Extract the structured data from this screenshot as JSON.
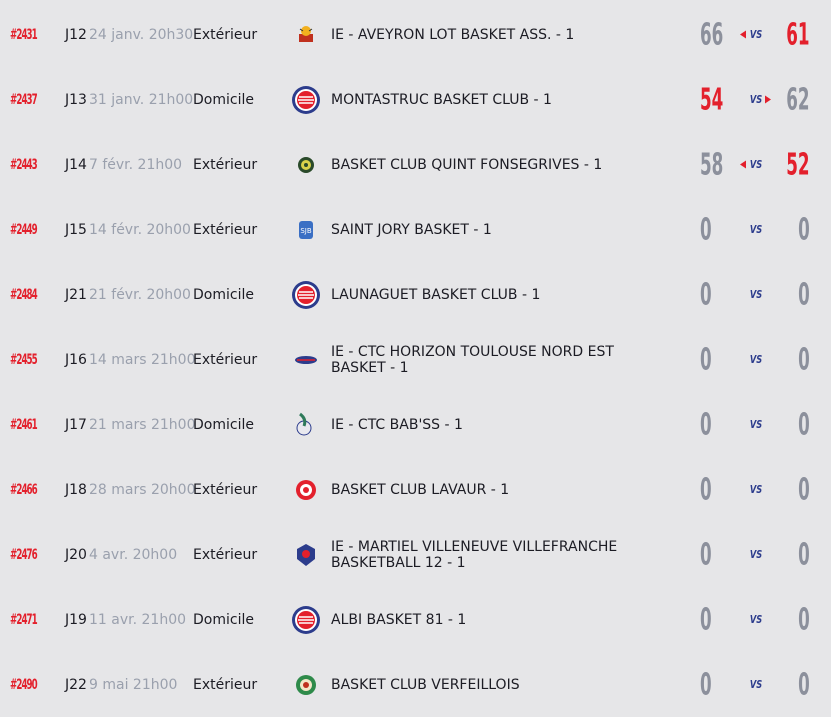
{
  "colors": {
    "accent": "#e3202c",
    "navy": "#2c3c8c",
    "muted": "#8c909c",
    "background": "#e6e6e8"
  },
  "vs_label": "VS",
  "matches": [
    {
      "code": "#2431",
      "jour": "J12",
      "date": "24 janv. 20h30",
      "venue": "Extérieur",
      "team": "IE - AVEYRON LOT BASKET ASS. - 1",
      "logo_icon": "aveyron-lot-logo-icon",
      "score_home": "66",
      "score_away": "61",
      "winner": "away"
    },
    {
      "code": "#2437",
      "jour": "J13",
      "date": "31 janv. 21h00",
      "venue": "Domicile",
      "team": "MONTASTRUC BASKET CLUB - 1",
      "logo_icon": "montastruc-logo-icon",
      "score_home": "54",
      "score_away": "62",
      "winner": "home"
    },
    {
      "code": "#2443",
      "jour": "J14",
      "date": "7 févr. 21h00",
      "venue": "Extérieur",
      "team": "BASKET CLUB QUINT FONSEGRIVES - 1",
      "logo_icon": "quint-fonsegrives-logo-icon",
      "score_home": "58",
      "score_away": "52",
      "winner": "away"
    },
    {
      "code": "#2449",
      "jour": "J15",
      "date": "14 févr. 20h00",
      "venue": "Extérieur",
      "team": "SAINT JORY BASKET - 1",
      "logo_icon": "saint-jory-logo-icon",
      "score_home": "0",
      "score_away": "0",
      "winner": "none"
    },
    {
      "code": "#2484",
      "jour": "J21",
      "date": "21 févr. 20h00",
      "venue": "Domicile",
      "team": "LAUNAGUET BASKET CLUB - 1",
      "logo_icon": "launaguet-logo-icon",
      "score_home": "0",
      "score_away": "0",
      "winner": "none"
    },
    {
      "code": "#2455",
      "jour": "J16",
      "date": "14 mars 21h00",
      "venue": "Extérieur",
      "team": "IE - CTC HORIZON TOULOUSE NORD EST BASKET - 1",
      "logo_icon": "ctc-horizon-logo-icon",
      "score_home": "0",
      "score_away": "0",
      "winner": "none"
    },
    {
      "code": "#2461",
      "jour": "J17",
      "date": "21 mars 21h00",
      "venue": "Domicile",
      "team": "IE - CTC BAB'SS - 1",
      "logo_icon": "ctc-babss-logo-icon",
      "score_home": "0",
      "score_away": "0",
      "winner": "none"
    },
    {
      "code": "#2466",
      "jour": "J18",
      "date": "28 mars 20h00",
      "venue": "Extérieur",
      "team": "BASKET CLUB LAVAUR - 1",
      "logo_icon": "lavaur-logo-icon",
      "score_home": "0",
      "score_away": "0",
      "winner": "none"
    },
    {
      "code": "#2476",
      "jour": "J20",
      "date": "4 avr. 20h00",
      "venue": "Extérieur",
      "team": "IE - MARTIEL VILLENEUVE VILLEFRANCHE BASKETBALL 12 - 1",
      "logo_icon": "martiel-villeneuve-logo-icon",
      "score_home": "0",
      "score_away": "0",
      "winner": "none"
    },
    {
      "code": "#2471",
      "jour": "J19",
      "date": "11 avr. 21h00",
      "venue": "Domicile",
      "team": "ALBI BASKET 81 - 1",
      "logo_icon": "albi-logo-icon",
      "score_home": "0",
      "score_away": "0",
      "winner": "none"
    },
    {
      "code": "#2490",
      "jour": "J22",
      "date": "9 mai 21h00",
      "venue": "Extérieur",
      "team": "BASKET CLUB VERFEILLOIS",
      "logo_icon": "verfeillois-logo-icon",
      "score_home": "0",
      "score_away": "0",
      "winner": "none"
    }
  ]
}
